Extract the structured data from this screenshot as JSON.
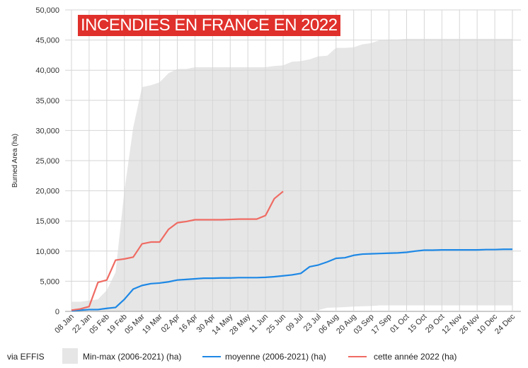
{
  "chart_data": {
    "type": "line",
    "title": "INCENDIES EN FRANCE EN 2022",
    "ylabel": "Burned Area (ha)",
    "xlabel": "",
    "ylim": [
      0,
      50000
    ],
    "yticks": [
      "0",
      "5,000",
      "10,000",
      "15,000",
      "20,000",
      "25,000",
      "30,000",
      "35,000",
      "40,000",
      "45,000",
      "50,000"
    ],
    "xtick_labels": [
      "08 Jan",
      "22 Jan",
      "05 Feb",
      "19 Feb",
      "05 Mar",
      "19 Mar",
      "02 Apr",
      "16 Apr",
      "30 Apr",
      "14 May",
      "28 May",
      "11 Jun",
      "25 Jun",
      "09 Jul",
      "23 Jul",
      "06 Aug",
      "20 Aug",
      "03 Sep",
      "17 Sep",
      "01 Oct",
      "15 Oct",
      "29 Oct",
      "12 Nov",
      "26 Nov",
      "10 Dec",
      "24 Dec"
    ],
    "grid": true,
    "legend_position": "bottom",
    "source": "via EFFIS",
    "series": [
      {
        "name": "Min-max (2006-2021) (ha)",
        "type": "band",
        "color": "#e6e6e6",
        "max": [
          1600,
          1600,
          1800,
          2000,
          3500,
          6500,
          20000,
          30500,
          37200,
          37500,
          38000,
          39500,
          40200,
          40200,
          40500,
          40500,
          40500,
          40500,
          40500,
          40500,
          40500,
          40500,
          40500,
          40700,
          40800,
          41400,
          41500,
          41800,
          42300,
          42400,
          43700,
          43700,
          43800,
          44300,
          44500,
          45000,
          45100,
          45100,
          45200,
          45200,
          45200,
          45200,
          45200,
          45200,
          45200,
          45200,
          45200,
          45200,
          45200,
          45200,
          45200
        ],
        "min": [
          0,
          0,
          0,
          0,
          0,
          0,
          0,
          0,
          0,
          0,
          0,
          0,
          0,
          0,
          0,
          0,
          0,
          0,
          0,
          0,
          0,
          0,
          0,
          0,
          0,
          0,
          0,
          0,
          200,
          600,
          650,
          700,
          800,
          850,
          900,
          1000,
          1000,
          1000,
          1000,
          1000,
          1000,
          1000,
          1000,
          1000,
          1000,
          1000,
          1000,
          1000,
          1000,
          1000,
          1000
        ]
      },
      {
        "name": "moyenne (2006-2021) (ha)",
        "type": "line",
        "color": "#1e88e5",
        "values": [
          100,
          200,
          300,
          300,
          500,
          650,
          2000,
          3700,
          4300,
          4600,
          4700,
          4900,
          5200,
          5300,
          5400,
          5500,
          5500,
          5550,
          5550,
          5600,
          5600,
          5600,
          5650,
          5750,
          5900,
          6050,
          6300,
          7400,
          7700,
          8200,
          8800,
          8900,
          9300,
          9500,
          9550,
          9600,
          9650,
          9700,
          9800,
          10000,
          10150,
          10150,
          10200,
          10200,
          10200,
          10200,
          10200,
          10250,
          10250,
          10300,
          10300
        ]
      },
      {
        "name": "cette année 2022  (ha)",
        "type": "line",
        "color": "#ef6b63",
        "values": [
          200,
          400,
          800,
          4800,
          5200,
          8500,
          8700,
          9000,
          11200,
          11500,
          11500,
          13600,
          14700,
          14900,
          15200,
          15200,
          15200,
          15200,
          15250,
          15300,
          15300,
          15300,
          15900,
          18700,
          19900
        ]
      }
    ]
  }
}
